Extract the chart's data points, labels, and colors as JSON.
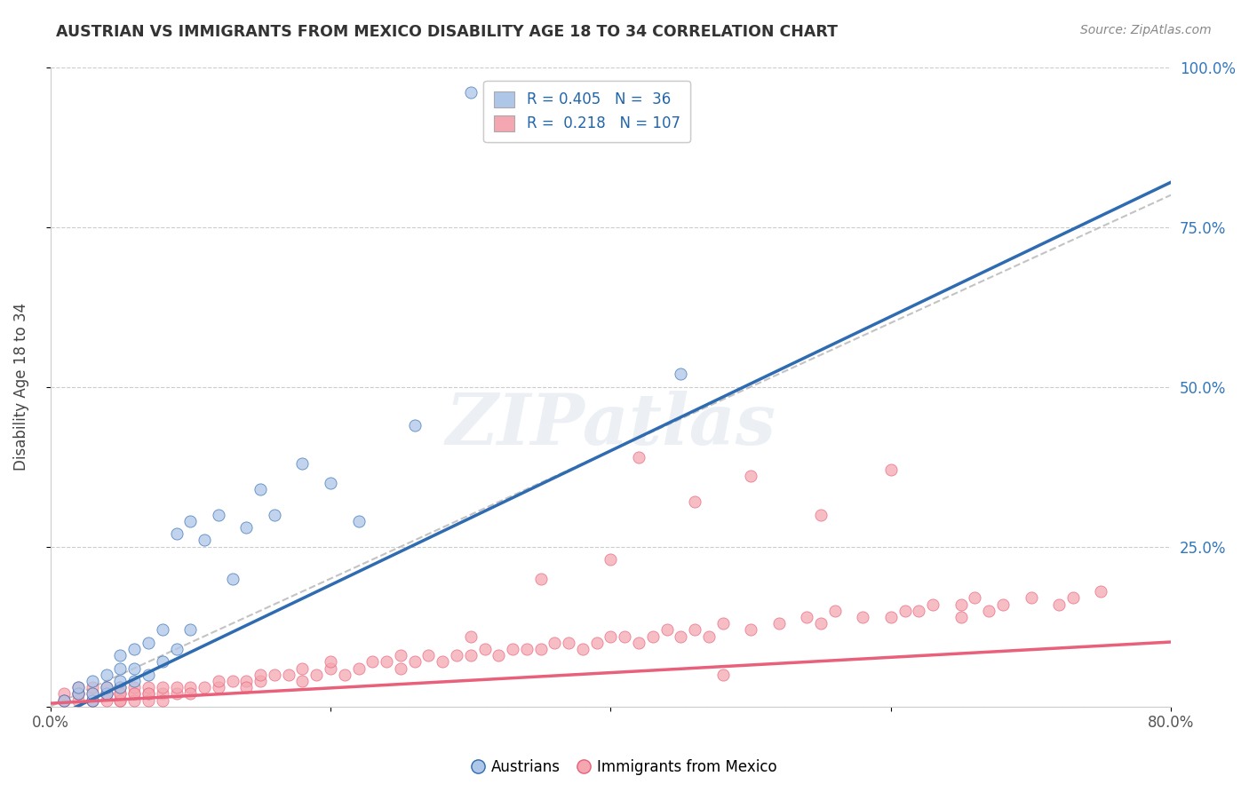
{
  "title": "AUSTRIAN VS IMMIGRANTS FROM MEXICO DISABILITY AGE 18 TO 34 CORRELATION CHART",
  "source": "Source: ZipAtlas.com",
  "ylabel": "Disability Age 18 to 34",
  "xlim": [
    0.0,
    0.8
  ],
  "ylim": [
    0.0,
    1.0
  ],
  "blue_color": "#AEC6E8",
  "pink_color": "#F4A7B0",
  "blue_line_color": "#2E6BB0",
  "pink_line_color": "#E8607A",
  "watermark": "ZIPatlas",
  "blue_intercept": -0.02,
  "blue_slope": 1.05,
  "pink_intercept": 0.005,
  "pink_slope": 0.12,
  "austrians_x": [
    0.01,
    0.02,
    0.02,
    0.03,
    0.03,
    0.03,
    0.04,
    0.04,
    0.04,
    0.05,
    0.05,
    0.05,
    0.05,
    0.06,
    0.06,
    0.06,
    0.07,
    0.07,
    0.08,
    0.08,
    0.09,
    0.09,
    0.1,
    0.1,
    0.11,
    0.12,
    0.13,
    0.14,
    0.15,
    0.16,
    0.18,
    0.2,
    0.22,
    0.26,
    0.45,
    0.3
  ],
  "austrians_y": [
    0.01,
    0.02,
    0.03,
    0.01,
    0.02,
    0.04,
    0.02,
    0.03,
    0.05,
    0.03,
    0.04,
    0.06,
    0.08,
    0.04,
    0.06,
    0.09,
    0.05,
    0.1,
    0.07,
    0.12,
    0.09,
    0.27,
    0.12,
    0.29,
    0.26,
    0.3,
    0.2,
    0.28,
    0.34,
    0.3,
    0.38,
    0.35,
    0.29,
    0.44,
    0.52,
    0.96
  ],
  "mexico_x": [
    0.01,
    0.01,
    0.01,
    0.02,
    0.02,
    0.02,
    0.02,
    0.03,
    0.03,
    0.03,
    0.03,
    0.04,
    0.04,
    0.04,
    0.04,
    0.05,
    0.05,
    0.05,
    0.05,
    0.05,
    0.06,
    0.06,
    0.06,
    0.06,
    0.07,
    0.07,
    0.07,
    0.07,
    0.08,
    0.08,
    0.08,
    0.09,
    0.09,
    0.1,
    0.1,
    0.11,
    0.12,
    0.12,
    0.13,
    0.14,
    0.14,
    0.15,
    0.15,
    0.16,
    0.17,
    0.18,
    0.18,
    0.19,
    0.2,
    0.21,
    0.22,
    0.23,
    0.24,
    0.25,
    0.26,
    0.27,
    0.28,
    0.29,
    0.3,
    0.31,
    0.32,
    0.33,
    0.34,
    0.35,
    0.36,
    0.37,
    0.38,
    0.39,
    0.4,
    0.41,
    0.42,
    0.43,
    0.44,
    0.45,
    0.46,
    0.47,
    0.48,
    0.5,
    0.52,
    0.54,
    0.55,
    0.56,
    0.58,
    0.6,
    0.61,
    0.62,
    0.63,
    0.65,
    0.66,
    0.67,
    0.68,
    0.7,
    0.72,
    0.73,
    0.75,
    0.5,
    0.55,
    0.6,
    0.65,
    0.4,
    0.42,
    0.46,
    0.35,
    0.3,
    0.25,
    0.2,
    0.48
  ],
  "mexico_y": [
    0.01,
    0.02,
    0.01,
    0.02,
    0.01,
    0.03,
    0.02,
    0.01,
    0.02,
    0.03,
    0.01,
    0.02,
    0.01,
    0.03,
    0.02,
    0.01,
    0.02,
    0.03,
    0.01,
    0.02,
    0.02,
    0.01,
    0.03,
    0.02,
    0.02,
    0.01,
    0.03,
    0.02,
    0.02,
    0.01,
    0.03,
    0.02,
    0.03,
    0.03,
    0.02,
    0.03,
    0.03,
    0.04,
    0.04,
    0.04,
    0.03,
    0.04,
    0.05,
    0.05,
    0.05,
    0.04,
    0.06,
    0.05,
    0.06,
    0.05,
    0.06,
    0.07,
    0.07,
    0.06,
    0.07,
    0.08,
    0.07,
    0.08,
    0.08,
    0.09,
    0.08,
    0.09,
    0.09,
    0.09,
    0.1,
    0.1,
    0.09,
    0.1,
    0.11,
    0.11,
    0.1,
    0.11,
    0.12,
    0.11,
    0.12,
    0.11,
    0.13,
    0.12,
    0.13,
    0.14,
    0.13,
    0.15,
    0.14,
    0.14,
    0.15,
    0.15,
    0.16,
    0.16,
    0.17,
    0.15,
    0.16,
    0.17,
    0.16,
    0.17,
    0.18,
    0.36,
    0.3,
    0.37,
    0.14,
    0.23,
    0.39,
    0.32,
    0.2,
    0.11,
    0.08,
    0.07,
    0.05
  ]
}
